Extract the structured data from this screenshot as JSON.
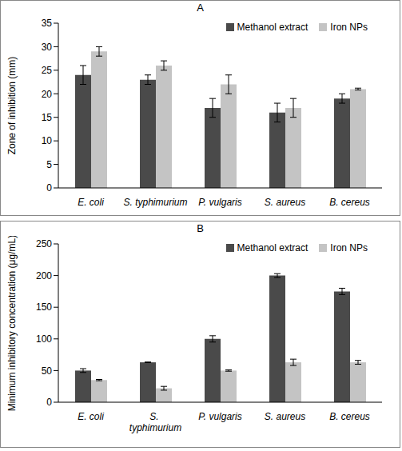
{
  "chart_data": [
    {
      "type": "bar",
      "title": "A",
      "y_label": "Zone of inhibition (mm)",
      "categories": [
        "E. coli",
        "S. typhimurium",
        "P. vulgaris",
        "S. aureus",
        "B. cereus"
      ],
      "series": [
        {
          "name": "Methanol extract",
          "color": "#4a4a4a",
          "values": [
            24,
            23,
            17,
            16,
            19
          ],
          "errors": [
            2,
            1,
            2,
            2,
            1
          ]
        },
        {
          "name": "Iron NPs",
          "color": "#c4c4c4",
          "values": [
            29,
            26,
            22,
            17,
            21
          ],
          "errors": [
            1,
            1,
            2,
            2,
            0.2
          ]
        }
      ],
      "ylim": [
        0,
        35
      ],
      "yticks": [
        0,
        5,
        10,
        15,
        20,
        25,
        30,
        35
      ],
      "grid": false,
      "legend": "upper right"
    },
    {
      "type": "bar",
      "title": "B",
      "y_label": "Minimum inhibitory concentration (μg/mL)",
      "categories": [
        "E. coli",
        "S. typhimurium",
        "P. vulgaris",
        "S. aureus",
        "B. cereus"
      ],
      "series": [
        {
          "name": "Methanol extract",
          "color": "#4a4a4a",
          "values": [
            50,
            63,
            100,
            200,
            175
          ],
          "errors": [
            3,
            0.5,
            5,
            3,
            5
          ]
        },
        {
          "name": "Iron NPs",
          "color": "#c4c4c4",
          "values": [
            35,
            22,
            50,
            63,
            63
          ],
          "errors": [
            1,
            3,
            1,
            5,
            3
          ]
        }
      ],
      "ylim": [
        0,
        250
      ],
      "yticks": [
        0,
        50,
        100,
        150,
        200,
        250
      ],
      "grid": false,
      "legend": "upper right"
    }
  ]
}
